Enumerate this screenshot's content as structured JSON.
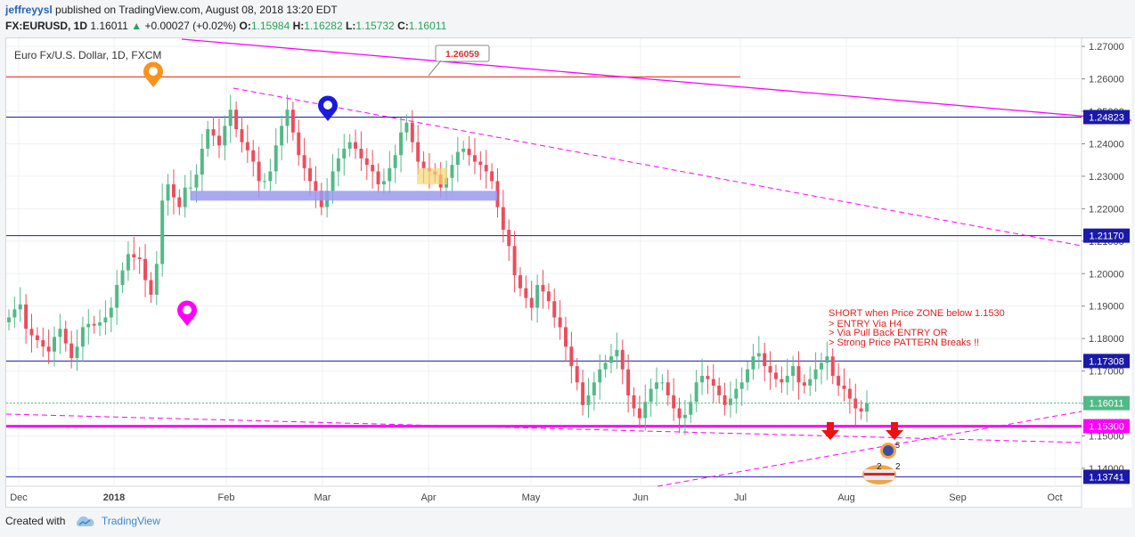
{
  "header": {
    "author": "jeffreyysl",
    "published_text": " published on TradingView.com, August 08, 2018 13:20 EDT",
    "symbol": "FX:EURUSD, 1D",
    "price": "1.16011",
    "change": "+0.00027 (+0.02%)",
    "o_label": "O:",
    "o_value": "1.15984",
    "h_label": "H:",
    "h_value": "1.16282",
    "l_label": "L:",
    "l_value": "1.15732",
    "c_label": "C:",
    "c_value": "1.16011"
  },
  "chart_title": "Euro Fx/U.S. Dollar, 1D, FXCM",
  "annotation_lines": [
    "SHORT when Price ZONE below 1.1530",
    "> ENTRY Via H4",
    "> Via Pull Back ENTRY OR",
    "> Strong Price PATTERN Breaks !!"
  ],
  "callout_label": "1.26059",
  "footer": {
    "created_with": "Created with",
    "brand": "TradingView"
  },
  "colors": {
    "up": "#53b987",
    "down": "#eb4d5c",
    "level": "#1a1aa8",
    "magenta": "#ff00ff",
    "red_line": "#e8473a"
  },
  "icons": [
    "orange-pin-icon",
    "blue-pin-icon",
    "magenta-pin-icon",
    "red-down-arrow-icon",
    "flag-event-icon",
    "tradingview-cloud-icon"
  ],
  "chart_data": {
    "type": "candlestick",
    "y_range": [
      1.1345,
      1.2725
    ],
    "y_ticks": [
      "1.27000",
      "1.26000",
      "1.25000",
      "1.24000",
      "1.23000",
      "1.22000",
      "1.21000",
      "1.20000",
      "1.19000",
      "1.18000",
      "1.17000",
      "1.16000",
      "1.15000",
      "1.14000"
    ],
    "x_ticks": [
      "Dec",
      "2018",
      "Feb",
      "Mar",
      "Apr",
      "May",
      "Jun",
      "Jul",
      "Aug",
      "Sep",
      "Oct"
    ],
    "price_labels": [
      {
        "text": "1.24823",
        "value": 1.24823
      },
      {
        "text": "1.21170",
        "value": 1.2117
      },
      {
        "text": "1.17308",
        "value": 1.17308
      },
      {
        "text": "1.16011",
        "value": 1.16011
      },
      {
        "text": "1.15300",
        "value": 1.153
      },
      {
        "text": "1.13741",
        "value": 1.13741
      }
    ],
    "horizontal_levels": [
      1.24823,
      1.2117,
      1.17308,
      1.13741
    ],
    "support_level": 1.153,
    "red_level": 1.26059,
    "current_price": 1.16011,
    "closes": [
      1.1865,
      1.189,
      1.1905,
      1.183,
      1.181,
      1.1795,
      1.1775,
      1.176,
      1.1805,
      1.183,
      1.1785,
      1.174,
      1.1775,
      1.1835,
      1.1845,
      1.184,
      1.185,
      1.1865,
      1.1895,
      1.1965,
      1.201,
      1.206,
      1.205,
      1.2045,
      1.198,
      1.1935,
      1.203,
      1.2225,
      1.2275,
      1.2235,
      1.2205,
      1.2265,
      1.2265,
      1.2305,
      1.2385,
      1.2445,
      1.2425,
      1.2395,
      1.2455,
      1.2505,
      1.2445,
      1.2405,
      1.238,
      1.2345,
      1.2285,
      1.2285,
      1.2315,
      1.2395,
      1.2455,
      1.2505,
      1.2435,
      1.2365,
      1.2325,
      1.2285,
      1.2255,
      1.2205,
      1.2255,
      1.2315,
      1.2355,
      1.2385,
      1.2405,
      1.2385,
      1.2355,
      1.2335,
      1.2315,
      1.2275,
      1.2285,
      1.2325,
      1.2365,
      1.2435,
      1.2465,
      1.2405,
      1.2345,
      1.2325,
      1.2315,
      1.2305,
      1.2265,
      1.2295,
      1.2335,
      1.2375,
      1.2385,
      1.2365,
      1.2345,
      1.2335,
      1.2315,
      1.2285,
      1.2205,
      1.2135,
      1.2085,
      1.1995,
      1.1955,
      1.1925,
      1.1895,
      1.1965,
      1.1945,
      1.1915,
      1.1865,
      1.1835,
      1.1775,
      1.1715,
      1.1665,
      1.1595,
      1.1625,
      1.1665,
      1.1705,
      1.1725,
      1.1745,
      1.1765,
      1.1705,
      1.1625,
      1.1585,
      1.1555,
      1.1605,
      1.1645,
      1.1665,
      1.1665,
      1.1625,
      1.1585,
      1.1555,
      1.1565,
      1.1605,
      1.1665,
      1.1685,
      1.1675,
      1.1655,
      1.1625,
      1.1595,
      1.1615,
      1.1645,
      1.1665,
      1.1705,
      1.1745,
      1.1755,
      1.1715,
      1.1695,
      1.1675,
      1.1665,
      1.1685,
      1.1715,
      1.1665,
      1.1655,
      1.1675,
      1.1705,
      1.1725,
      1.1745,
      1.1685,
      1.1655,
      1.1645,
      1.1615,
      1.1585,
      1.1575,
      1.1601
    ]
  }
}
